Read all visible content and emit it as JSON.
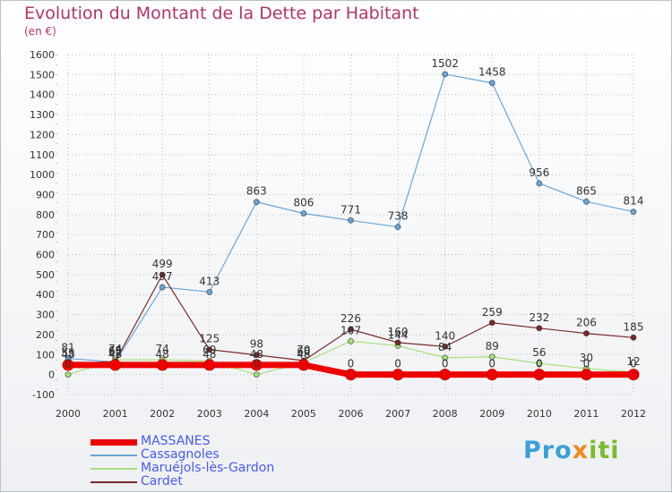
{
  "title": "Evolution du Montant de la Dette par Habitant",
  "unit_label": "(en €)",
  "logo_text": "Proxiti",
  "colors": {
    "title": "#b0346a",
    "grid": "#b8bcc4",
    "massanes": "#ee0000",
    "cassagnoles": "#6aa6d8",
    "marue": "#a6e07a",
    "cardet": "#7a2a2a"
  },
  "chart_data": {
    "type": "line",
    "title": "Evolution du Montant de la Dette par Habitant",
    "ylabel": "(en €)",
    "xlabel": "",
    "x": [
      "2000",
      "2001",
      "2002",
      "2003",
      "2004",
      "2005",
      "2006",
      "2007",
      "2008",
      "2009",
      "2010",
      "2011",
      "2012"
    ],
    "ylim": [
      -100,
      1600
    ],
    "yticks": [
      -100,
      0,
      100,
      200,
      300,
      400,
      500,
      600,
      700,
      800,
      900,
      1000,
      1100,
      1200,
      1300,
      1400,
      1500,
      1600
    ],
    "grid": true,
    "legend_position": "bottom-left",
    "series": [
      {
        "name": "MASSANES",
        "color": "#ee0000",
        "values": [
          48,
          48,
          48,
          48,
          48,
          48,
          0,
          0,
          0,
          0,
          0,
          0,
          0
        ],
        "labels": [
          "48",
          "48",
          "48",
          "48",
          "48",
          "48",
          "0",
          "0",
          "0",
          "0",
          "0",
          "0",
          "0"
        ]
      },
      {
        "name": "Cassagnoles",
        "color": "#6aa6d8",
        "values": [
          81,
          62,
          437,
          413,
          863,
          806,
          771,
          738,
          1502,
          1458,
          956,
          865,
          814
        ],
        "labels": [
          "81",
          "62",
          "437",
          "413",
          "863",
          "806",
          "771",
          "738",
          "1502",
          "1458",
          "956",
          "865",
          "814"
        ]
      },
      {
        "name": "Maruéjols-lès-Gardon",
        "color": "#a6e07a",
        "values": [
          0,
          74,
          74,
          69,
          0,
          60,
          167,
          144,
          84,
          89,
          56,
          30,
          12
        ],
        "labels": [
          "0",
          "74",
          "74",
          "69",
          "0",
          "60",
          "167",
          "144",
          "84",
          "89",
          "56",
          "30",
          "12"
        ]
      },
      {
        "name": "Cardet",
        "color": "#7a2a2a",
        "values": [
          55,
          65,
          499,
          125,
          98,
          70,
          226,
          160,
          140,
          259,
          232,
          206,
          185
        ],
        "labels": [
          "55",
          "65",
          "499",
          "125",
          "98",
          "70",
          "226",
          "160",
          "140",
          "259",
          "232",
          "206",
          "185"
        ]
      }
    ]
  }
}
